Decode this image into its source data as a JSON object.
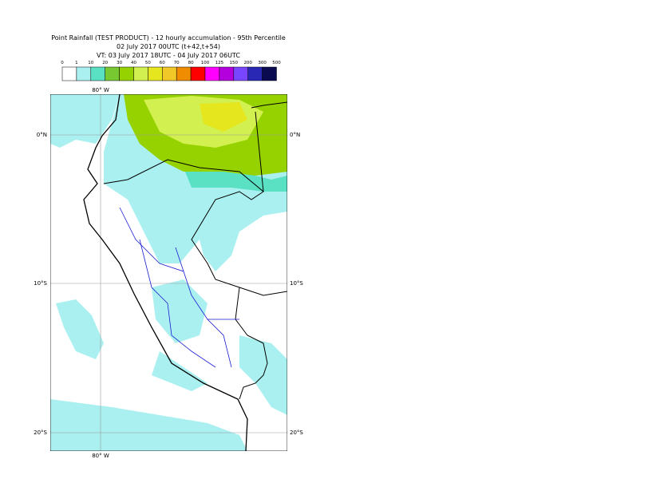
{
  "title": [
    "Point Rainfall (TEST PRODUCT) - 12 hourly accumulation - 95th Percentile",
    "02 July 2017 00UTC (t+42,t+54)",
    "VT: 03 July 2017 18UTC - 04 July 2017 06UTC"
  ],
  "legend": {
    "labels": [
      "0",
      "1",
      "10",
      "20",
      "30",
      "40",
      "50",
      "60",
      "70",
      "80",
      "100",
      "125",
      "150",
      "200",
      "300",
      "500"
    ],
    "colors": [
      "#ffffff",
      "#aaf0f0",
      "#5ae1c3",
      "#78c832",
      "#96d200",
      "#d2f050",
      "#e6e61e",
      "#f0c828",
      "#f08c00",
      "#ff0000",
      "#ff00ff",
      "#b400dc",
      "#7846ff",
      "#2828b4",
      "#0a0a50"
    ]
  },
  "axis_labels": {
    "top": "80° W",
    "bottom": "80° W",
    "left": [
      "0°N",
      "10°S",
      "20°S"
    ],
    "right": [
      "0°N",
      "10°S",
      "20°S"
    ]
  }
}
